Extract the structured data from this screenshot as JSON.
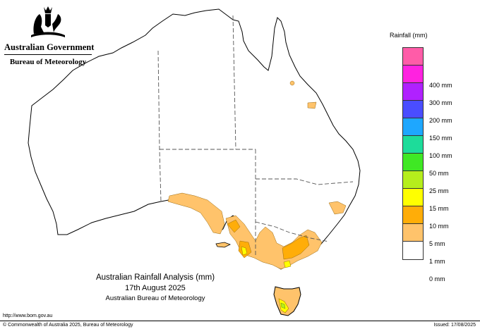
{
  "header": {
    "government_name": "Australian Government",
    "bureau_name": "Bureau of Meteorology"
  },
  "legend": {
    "title": "Rainfall (mm)",
    "levels": [
      {
        "label": "",
        "color": "#ff5ca8"
      },
      {
        "label": "400 mm",
        "color": "#ff22e0"
      },
      {
        "label": "300 mm",
        "color": "#b021ff"
      },
      {
        "label": "200 mm",
        "color": "#4a4dff"
      },
      {
        "label": "150 mm",
        "color": "#1ea7ff"
      },
      {
        "label": "100 mm",
        "color": "#1ddc9a"
      },
      {
        "label": "50 mm",
        "color": "#3fe824"
      },
      {
        "label": "25 mm",
        "color": "#b5ee1c"
      },
      {
        "label": "15 mm",
        "color": "#ffff00"
      },
      {
        "label": "10 mm",
        "color": "#ffad08"
      },
      {
        "label": "5 mm",
        "color": "#ffc36b"
      },
      {
        "label": "1 mm",
        "color": "#ffffff"
      },
      {
        "label": "0 mm",
        "color": null
      }
    ]
  },
  "title": {
    "line1": "Australian Rainfall Analysis (mm)",
    "line2": "17th August 2025",
    "line3": "Australian Bureau of Meteorology"
  },
  "footer": {
    "url": "http://www.bom.gov.au",
    "copyright": "© Commonwealth of Australia 2025, Bureau of Meteorology",
    "issued": "Issued: 17/08/2025"
  },
  "map": {
    "outline_color": "#000000",
    "border_color": "#555555",
    "rain_color_light": "#ffc36b",
    "rain_color_mid": "#ffad08",
    "rain_color_high": "#ffff00",
    "rain_color_top": "#b5ee1c"
  }
}
